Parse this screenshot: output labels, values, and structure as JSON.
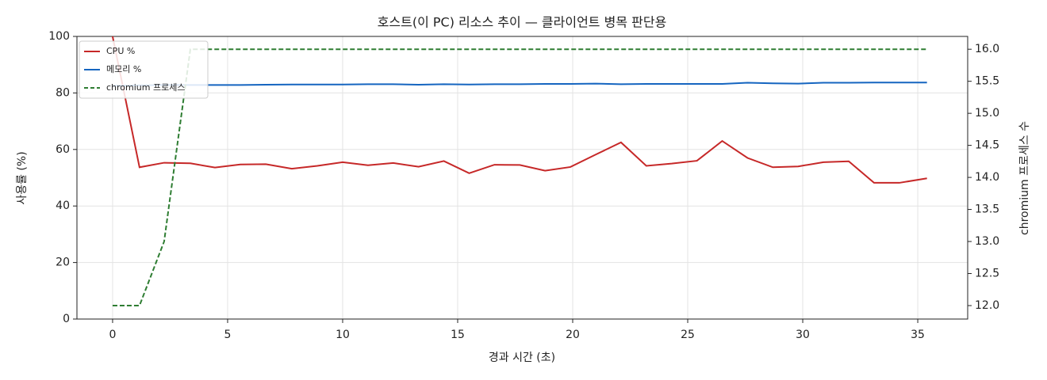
{
  "chart_data": {
    "type": "line",
    "title": "호스트(이 PC) 리소스 추이 — 클라이언트 병목 판단용",
    "x_label": "경과 시간 (초)",
    "y_label": "사용률 (%)",
    "y2_label": "chromium 프로세스 수",
    "x": [
      0,
      1.17,
      2.24,
      3.38,
      4.45,
      5.55,
      6.66,
      7.79,
      8.9,
      10.0,
      11.1,
      12.2,
      13.3,
      14.4,
      15.5,
      16.6,
      17.7,
      18.8,
      19.9,
      21.0,
      22.1,
      23.2,
      24.3,
      25.4,
      26.5,
      27.6,
      28.7,
      29.8,
      30.9,
      32.0,
      33.1,
      34.2,
      35.4
    ],
    "series": [
      {
        "name": "CPU %",
        "color": "#c62828",
        "linestyle": "solid",
        "values": [
          100,
          53.7,
          55.3,
          55.1,
          53.6,
          54.7,
          54.8,
          53.2,
          54.2,
          55.5,
          54.4,
          55.2,
          53.9,
          55.9,
          51.6,
          54.6,
          54.5,
          52.5,
          53.8,
          58.2,
          62.5,
          54.2,
          55.0,
          56.0,
          63.0,
          57.0,
          53.7,
          54.0,
          55.5,
          55.8,
          48.2,
          48.2,
          49.8
        ]
      },
      {
        "name": "메모리 %",
        "color": "#1565c0",
        "linestyle": "solid",
        "values": [
          82.5,
          82.7,
          82.8,
          82.8,
          82.8,
          82.8,
          82.9,
          83.0,
          83.0,
          83.0,
          83.1,
          83.1,
          82.9,
          83.1,
          83.0,
          83.1,
          83.1,
          83.2,
          83.2,
          83.3,
          83.1,
          83.2,
          83.2,
          83.2,
          83.2,
          83.6,
          83.4,
          83.3,
          83.6,
          83.6,
          83.7,
          83.7,
          83.7
        ]
      },
      {
        "name": "chromium 프로세스",
        "color": "#2e7d32",
        "linestyle": "dashed",
        "axis": "y2",
        "values": [
          12,
          12,
          13,
          16,
          16,
          16,
          16,
          16,
          16,
          16,
          16,
          16,
          16,
          16,
          16,
          16,
          16,
          16,
          16,
          16,
          16,
          16,
          16,
          16,
          16,
          16,
          16,
          16,
          16,
          16,
          16,
          16,
          16
        ]
      }
    ],
    "xlim": [
      -1.55,
      37.17
    ],
    "xticks": [
      0,
      5,
      10,
      15,
      20,
      25,
      30,
      35
    ],
    "ylim": [
      0,
      100
    ],
    "yticks": [
      0,
      20,
      40,
      60,
      80,
      100
    ],
    "y2lim": [
      11.79,
      16.2
    ],
    "y2ticks": [
      {
        "value": 12,
        "label": "12.0"
      },
      {
        "value": 12.5,
        "label": "12.5"
      },
      {
        "value": 13,
        "label": "13.0"
      },
      {
        "value": 13.5,
        "label": "13.5"
      },
      {
        "value": 14,
        "label": "14.0"
      },
      {
        "value": 14.5,
        "label": "14.5"
      },
      {
        "value": 15,
        "label": "15.0"
      },
      {
        "value": 15.5,
        "label": "15.5"
      },
      {
        "value": 16,
        "label": "16.0"
      }
    ],
    "grid": true,
    "legend": "upper left"
  }
}
